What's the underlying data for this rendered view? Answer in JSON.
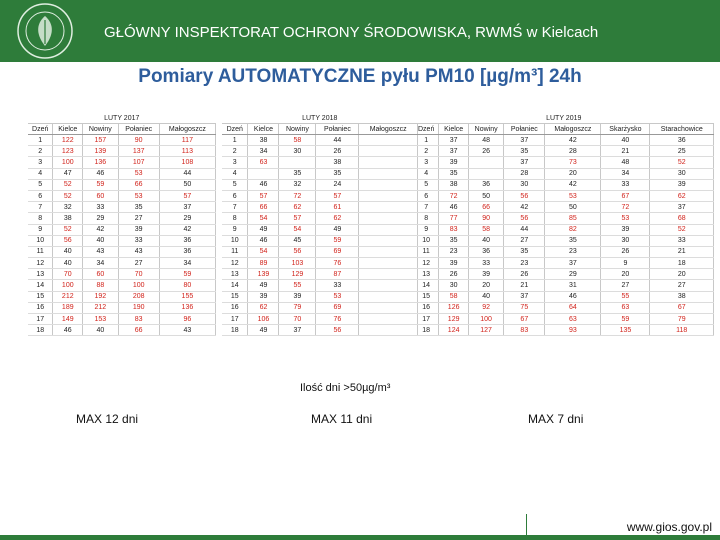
{
  "header": {
    "title": "GŁÓWNY INSPEKTORAT OCHRONY ŚRODOWISKA,   RWMŚ w Kielcach"
  },
  "subtitle": "Pomiary AUTOMATYCZNE pyłu PM10 [µg/m³] 24h",
  "colors": {
    "header_bg": "#2e7c3a",
    "subtitle": "#2e5d9c",
    "exceed": "#d1221a"
  },
  "tables": [
    {
      "title": "LUTY 2017",
      "columns": [
        "Dzeń",
        "Kielce",
        "Nowiny",
        "Połaniec",
        "Małogoszcz"
      ],
      "rows": [
        [
          "1",
          "122",
          "157",
          "90",
          "117"
        ],
        [
          "2",
          "123",
          "139",
          "137",
          "113"
        ],
        [
          "3",
          "100",
          "136",
          "107",
          "108"
        ],
        [
          "4",
          "47",
          "46",
          "53",
          "44"
        ],
        [
          "5",
          "52",
          "59",
          "66",
          "50"
        ],
        [
          "6",
          "52",
          "60",
          "53",
          "57"
        ],
        [
          "7",
          "32",
          "33",
          "35",
          "37"
        ],
        [
          "8",
          "38",
          "29",
          "27",
          "29"
        ],
        [
          "9",
          "52",
          "42",
          "39",
          "42"
        ],
        [
          "10",
          "56",
          "40",
          "33",
          "36"
        ],
        [
          "11",
          "40",
          "43",
          "43",
          "36"
        ],
        [
          "12",
          "40",
          "34",
          "27",
          "34"
        ],
        [
          "13",
          "70",
          "60",
          "70",
          "59"
        ],
        [
          "14",
          "100",
          "88",
          "100",
          "80"
        ],
        [
          "15",
          "212",
          "192",
          "208",
          "155"
        ],
        [
          "16",
          "189",
          "212",
          "190",
          "136"
        ],
        [
          "17",
          "149",
          "153",
          "83",
          "96"
        ],
        [
          "18",
          "46",
          "40",
          "66",
          "43"
        ]
      ]
    },
    {
      "title": "LUTY 2018",
      "columns": [
        "Dzeń",
        "Kielce",
        "Nowiny",
        "Połaniec",
        "Małogoszcz"
      ],
      "rows": [
        [
          "1",
          "38",
          "58",
          "44",
          ""
        ],
        [
          "2",
          "34",
          "30",
          "26",
          ""
        ],
        [
          "3",
          "63",
          "",
          "38",
          ""
        ],
        [
          "4",
          "",
          "35",
          "35",
          ""
        ],
        [
          "5",
          "46",
          "32",
          "24",
          ""
        ],
        [
          "6",
          "57",
          "72",
          "57",
          ""
        ],
        [
          "7",
          "66",
          "62",
          "61",
          ""
        ],
        [
          "8",
          "54",
          "57",
          "62",
          ""
        ],
        [
          "9",
          "49",
          "54",
          "49",
          ""
        ],
        [
          "10",
          "46",
          "45",
          "59",
          ""
        ],
        [
          "11",
          "54",
          "56",
          "69",
          ""
        ],
        [
          "12",
          "89",
          "103",
          "76",
          ""
        ],
        [
          "13",
          "139",
          "129",
          "87",
          ""
        ],
        [
          "14",
          "49",
          "55",
          "33",
          ""
        ],
        [
          "15",
          "39",
          "39",
          "53",
          ""
        ],
        [
          "16",
          "62",
          "79",
          "69",
          ""
        ],
        [
          "17",
          "106",
          "70",
          "76",
          ""
        ],
        [
          "18",
          "49",
          "37",
          "56",
          ""
        ]
      ]
    },
    {
      "title": "LUTY 2019",
      "columns": [
        "Dzeń",
        "Kielce",
        "Nowiny",
        "Połaniec",
        "Małogoszcz",
        "Skarżysko",
        "Starachowice"
      ],
      "rows": [
        [
          "1",
          "37",
          "48",
          "37",
          "42",
          "40",
          "36"
        ],
        [
          "2",
          "37",
          "26",
          "35",
          "28",
          "21",
          "25"
        ],
        [
          "3",
          "39",
          "",
          "37",
          "73",
          "48",
          "52"
        ],
        [
          "4",
          "35",
          "",
          "28",
          "20",
          "34",
          "30"
        ],
        [
          "5",
          "38",
          "36",
          "30",
          "42",
          "33",
          "39"
        ],
        [
          "6",
          "72",
          "50",
          "56",
          "53",
          "67",
          "62"
        ],
        [
          "7",
          "46",
          "66",
          "42",
          "50",
          "72",
          "37"
        ],
        [
          "8",
          "77",
          "90",
          "56",
          "85",
          "53",
          "68"
        ],
        [
          "9",
          "83",
          "58",
          "44",
          "82",
          "39",
          "52"
        ],
        [
          "10",
          "35",
          "40",
          "27",
          "35",
          "30",
          "33"
        ],
        [
          "11",
          "23",
          "36",
          "35",
          "23",
          "26",
          "21"
        ],
        [
          "12",
          "39",
          "33",
          "23",
          "37",
          "9",
          "18"
        ],
        [
          "13",
          "26",
          "39",
          "26",
          "29",
          "20",
          "20"
        ],
        [
          "14",
          "30",
          "20",
          "21",
          "31",
          "27",
          "27"
        ],
        [
          "15",
          "58",
          "40",
          "37",
          "46",
          "55",
          "38"
        ],
        [
          "16",
          "126",
          "92",
          "75",
          "64",
          "63",
          "67"
        ],
        [
          "17",
          "129",
          "100",
          "67",
          "63",
          "59",
          "79"
        ],
        [
          "18",
          "124",
          "127",
          "83",
          "93",
          "135",
          "118"
        ]
      ]
    }
  ],
  "days_label": "Ilość dni >50µg/m³",
  "max": [
    "MAX 12 dni",
    "MAX 11 dni",
    "MAX 7 dni"
  ],
  "footer_url": "www.gios.gov.pl"
}
